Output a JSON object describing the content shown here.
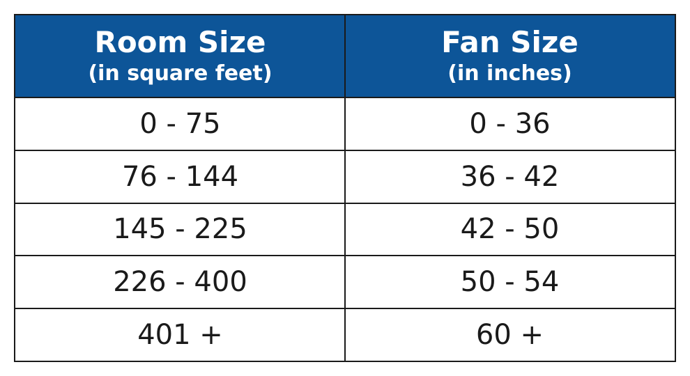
{
  "table": {
    "columns": [
      {
        "title": "Room Size",
        "subtitle": "(in square feet)"
      },
      {
        "title": "Fan Size",
        "subtitle": "(in inches)"
      }
    ],
    "rows": [
      [
        "0 - 75",
        "0 - 36"
      ],
      [
        "76 - 144",
        "36 - 42"
      ],
      [
        "145 - 225",
        "42 - 50"
      ],
      [
        "226 - 400",
        "50 - 54"
      ],
      [
        "401 +",
        "60 +"
      ]
    ]
  }
}
